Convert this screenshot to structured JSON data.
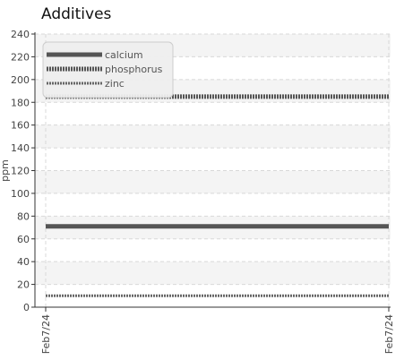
{
  "chart_data": {
    "type": "line",
    "title": "Additives",
    "xlabel": "",
    "ylabel": "ppm",
    "ylim": [
      0,
      240
    ],
    "yticks": [
      0,
      20,
      40,
      60,
      80,
      100,
      120,
      140,
      160,
      180,
      200,
      220,
      240
    ],
    "x": [
      "Feb7/24",
      "Feb7/24"
    ],
    "grid": true,
    "legend_position": "top-left",
    "series": [
      {
        "name": "calcium",
        "values": [
          71,
          71
        ],
        "color": "#555555",
        "style": "solid"
      },
      {
        "name": "phosphorus",
        "values": [
          185,
          185
        ],
        "color": "#555555",
        "style": "dotted-thick"
      },
      {
        "name": "zinc",
        "values": [
          10,
          10
        ],
        "color": "#666666",
        "style": "dotted-thin"
      }
    ]
  }
}
